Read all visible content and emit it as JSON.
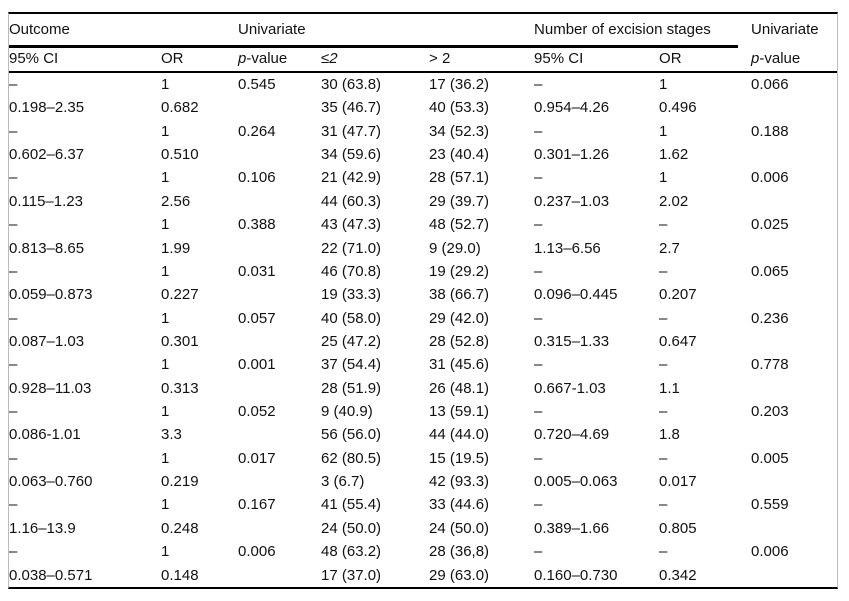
{
  "colors": {
    "rule": "#000000",
    "frame_edge": "#bbbbbb",
    "text": "#111111",
    "background": "#ffffff"
  },
  "table": {
    "group_header": [
      {
        "label": "Outcome"
      },
      {
        "label": "Univariate"
      },
      {
        "label": "Number of excision stages"
      },
      {
        "label": "Univariate"
      }
    ],
    "column_header": [
      "95% CI",
      "OR",
      "p-value",
      "≤2",
      "> 2",
      "95% CI",
      "OR",
      "p-value"
    ],
    "rows": [
      [
        "–",
        "1",
        "0.545",
        "30 (63.8)",
        "17 (36.2)",
        "–",
        "1",
        "0.066"
      ],
      [
        "0.198–2.35",
        "0.682",
        "",
        "35 (46.7)",
        "40 (53.3)",
        "0.954–4.26",
        "0.496",
        ""
      ],
      [
        "–",
        "1",
        "0.264",
        "31 (47.7)",
        "34 (52.3)",
        "–",
        "1",
        "0.188"
      ],
      [
        "0.602–6.37",
        "0.510",
        "",
        "34 (59.6)",
        "23 (40.4)",
        "0.301–1.26",
        "1.62",
        ""
      ],
      [
        "–",
        "1",
        "0.106",
        "21 (42.9)",
        "28 (57.1)",
        "–",
        "1",
        "0.006"
      ],
      [
        "0.115–1.23",
        "2.56",
        "",
        "44 (60.3)",
        "29 (39.7)",
        "0.237–1.03",
        "2.02",
        ""
      ],
      [
        "–",
        "1",
        "0.388",
        "43 (47.3)",
        "48 (52.7)",
        "–",
        "–",
        "0.025"
      ],
      [
        "0.813–8.65",
        "1.99",
        "",
        "22 (71.0)",
        "9 (29.0)",
        "1.13–6.56",
        "2.7",
        ""
      ],
      [
        "–",
        "1",
        "0.031",
        "46 (70.8)",
        "19 (29.2)",
        "–",
        "–",
        "0.065"
      ],
      [
        "0.059–0.873",
        "0.227",
        "",
        "19 (33.3)",
        "38 (66.7)",
        "0.096–0.445",
        "0.207",
        ""
      ],
      [
        "–",
        "1",
        "0.057",
        "40 (58.0)",
        "29 (42.0)",
        "–",
        "–",
        "0.236"
      ],
      [
        "0.087–1.03",
        "0.301",
        "",
        "25 (47.2)",
        "28 (52.8)",
        "0.315–1.33",
        "0.647",
        ""
      ],
      [
        "–",
        "1",
        "0.001",
        "37 (54.4)",
        "31 (45.6)",
        "–",
        "–",
        "0.778"
      ],
      [
        "0.928–11.03",
        "0.313",
        "",
        "28 (51.9)",
        "26 (48.1)",
        "0.667-1.03",
        "1.1",
        ""
      ],
      [
        "–",
        "1",
        "0.052",
        "9 (40.9)",
        "13 (59.1)",
        "–",
        "–",
        "0.203"
      ],
      [
        "0.086-1.01",
        "3.3",
        "",
        "56 (56.0)",
        "44 (44.0)",
        "0.720–4.69",
        "1.8",
        ""
      ],
      [
        "–",
        "1",
        "0.017",
        "62 (80.5)",
        "15 (19.5)",
        "–",
        "–",
        "0.005"
      ],
      [
        "0.063–0.760",
        "0.219",
        "",
        "3 (6.7)",
        "42 (93.3)",
        "0.005–0.063",
        "0.017",
        ""
      ],
      [
        "–",
        "1",
        "0.167",
        "41 (55.4)",
        "33 (44.6)",
        "–",
        "–",
        "0.559"
      ],
      [
        "1.16–13.9",
        "0.248",
        "",
        "24 (50.0)",
        "24 (50.0)",
        "0.389–1.66",
        "0.805",
        ""
      ],
      [
        "–",
        "1",
        "0.006",
        "48 (63.2)",
        "28 (36,8)",
        "–",
        "–",
        "0.006"
      ],
      [
        "0.038–0.571",
        "0.148",
        "",
        "17 (37.0)",
        "29 (63.0)",
        "0.160–0.730",
        "0.342",
        ""
      ]
    ]
  }
}
